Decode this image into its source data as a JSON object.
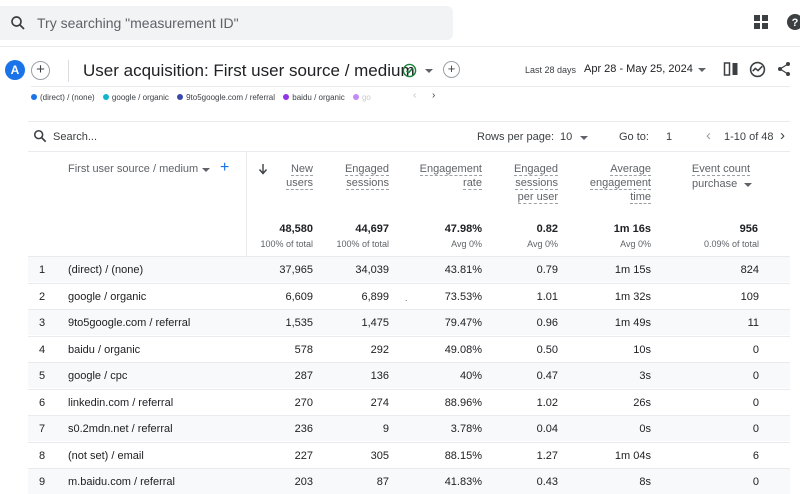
{
  "search": {
    "placeholder": "Try searching \"measurement ID\""
  },
  "header": {
    "avatar_letter": "A",
    "title": "User acquisition: First user source / medium",
    "date_label": "Last 28 days",
    "date_range": "Apr 28 - May 25, 2024"
  },
  "legend": [
    {
      "label": "(direct) / (none)",
      "color": "#1a73e8"
    },
    {
      "label": "google / organic",
      "color": "#12b5cb"
    },
    {
      "label": "9to5google.com / referral",
      "color": "#3949ab"
    },
    {
      "label": "baidu / organic",
      "color": "#9334e6"
    },
    {
      "label": "go",
      "color": "#c58af9"
    }
  ],
  "toolbar": {
    "search_placeholder": "Search...",
    "rows_per_page_label": "Rows per page:",
    "rows_per_page": "10",
    "goto_label": "Go to:",
    "goto_value": "1",
    "pagination": "1-10 of 48"
  },
  "columns": {
    "dimension": "First user source / medium",
    "new_users": [
      "New",
      "users"
    ],
    "engaged_sessions": [
      "Engaged",
      "sessions"
    ],
    "engagement_rate": [
      "Engagement",
      "rate"
    ],
    "engaged_per_user": [
      "Engaged",
      "sessions",
      "per user"
    ],
    "avg_time": [
      "Average",
      "engagement",
      "time"
    ],
    "event_count": "Event count",
    "event_filter": "purchase"
  },
  "totals": {
    "new_users": "48,580",
    "new_users_sub": "100% of total",
    "engaged_sessions": "44,697",
    "engaged_sessions_sub": "100% of total",
    "engagement_rate": "47.98%",
    "engagement_rate_sub": "Avg 0%",
    "engaged_per_user": "0.82",
    "engaged_per_user_sub": "Avg 0%",
    "avg_time": "1m 16s",
    "avg_time_sub": "Avg 0%",
    "event_count": "956",
    "event_count_sub": "0.09% of total"
  },
  "rows": [
    {
      "idx": "1",
      "dim": "(direct) / (none)",
      "nu": "37,965",
      "es": "34,039",
      "er": "43.81%",
      "epu": "0.79",
      "at": "1m 15s",
      "ec": "824"
    },
    {
      "idx": "2",
      "dim": "google / organic",
      "nu": "6,609",
      "es": "6,899",
      "er": "73.53%",
      "epu": "1.01",
      "at": "1m 32s",
      "ec": "109"
    },
    {
      "idx": "3",
      "dim": "9to5google.com / referral",
      "nu": "1,535",
      "es": "1,475",
      "er": "79.47%",
      "epu": "0.96",
      "at": "1m 49s",
      "ec": "11"
    },
    {
      "idx": "4",
      "dim": "baidu / organic",
      "nu": "578",
      "es": "292",
      "er": "49.08%",
      "epu": "0.50",
      "at": "10s",
      "ec": "0"
    },
    {
      "idx": "5",
      "dim": "google / cpc",
      "nu": "287",
      "es": "136",
      "er": "40%",
      "epu": "0.47",
      "at": "3s",
      "ec": "0"
    },
    {
      "idx": "6",
      "dim": "linkedin.com / referral",
      "nu": "270",
      "es": "274",
      "er": "88.96%",
      "epu": "1.02",
      "at": "26s",
      "ec": "0"
    },
    {
      "idx": "7",
      "dim": "s0.2mdn.net / referral",
      "nu": "236",
      "es": "9",
      "er": "3.78%",
      "epu": "0.04",
      "at": "0s",
      "ec": "0"
    },
    {
      "idx": "8",
      "dim": "(not set) / email",
      "nu": "227",
      "es": "305",
      "er": "88.15%",
      "epu": "1.27",
      "at": "1m 04s",
      "ec": "6"
    },
    {
      "idx": "9",
      "dim": "m.baidu.com / referral",
      "nu": "203",
      "es": "87",
      "er": "41.83%",
      "epu": "0.43",
      "at": "8s",
      "ec": "0"
    }
  ]
}
